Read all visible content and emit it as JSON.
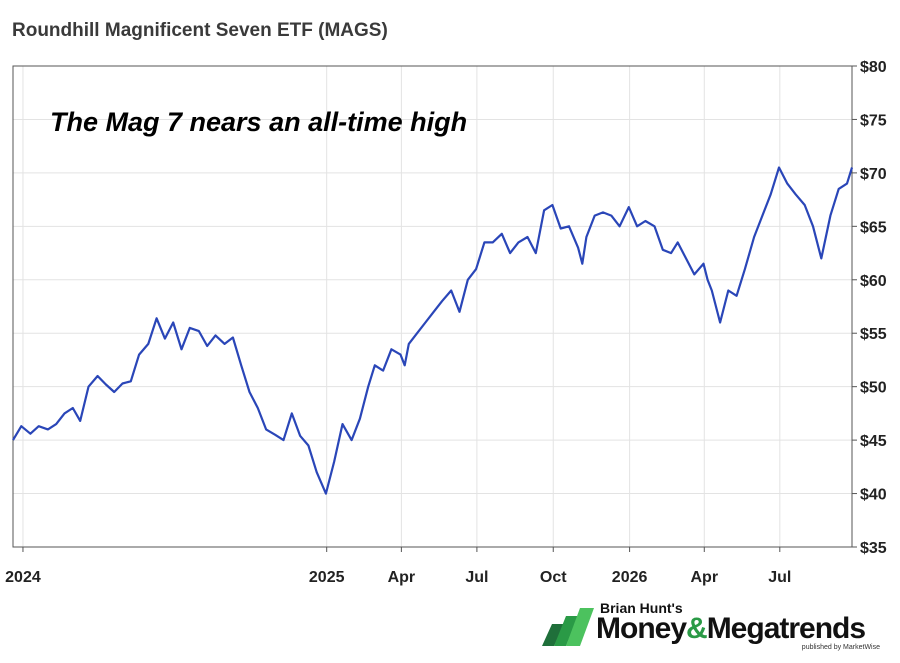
{
  "chart_title": "Roundhill Magnificent Seven ETF (MAGS)",
  "annotation": "The Mag 7 nears an all-time high",
  "logo": {
    "pre": "Brian Hunt's",
    "brand_a": "Money",
    "amp": "&",
    "brand_b": "Megatrends",
    "published": "published by MarketWise"
  },
  "colors": {
    "line": "#2a46b8",
    "grid": "#e3e3e3",
    "logo_green": "#2a9a46"
  },
  "chart_data": {
    "type": "line",
    "title": "Roundhill Magnificent Seven ETF (MAGS)",
    "annotations": [
      "The Mag 7 nears an all-time high"
    ],
    "xlabel": "",
    "ylabel": "",
    "y_axis_side": "right",
    "grid": true,
    "ylim": [
      35,
      80
    ],
    "yticks": [
      35,
      40,
      45,
      50,
      55,
      60,
      65,
      70,
      75,
      80
    ],
    "ytick_labels": [
      "$35",
      "$40",
      "$45",
      "$50",
      "$55",
      "$60",
      "$65",
      "$70",
      "$75",
      "$80"
    ],
    "xlim": [
      "2023-12-20",
      "2026-09-26"
    ],
    "xticks": [
      "2024-01-01",
      "2025-01-01",
      "2025-04-01",
      "2025-07-01",
      "2025-10-01",
      "2026-01-01",
      "2026-04-01",
      "2026-07-01"
    ],
    "xtick_labels": [
      "2024",
      "2025",
      "Apr",
      "Jul",
      "Oct",
      "2026",
      "Apr",
      "Jul"
    ],
    "series": [
      {
        "x": [
          "2023-12-20",
          "2023-12-30",
          "2024-01-10",
          "2024-01-20",
          "2024-01-31",
          "2024-02-10",
          "2024-02-20",
          "2024-03-01",
          "2024-03-10",
          "2024-03-20",
          "2024-03-31",
          "2024-04-10",
          "2024-04-20",
          "2024-04-30",
          "2024-05-10",
          "2024-05-20",
          "2024-05-31",
          "2024-06-10",
          "2024-06-20",
          "2024-06-30",
          "2024-07-10",
          "2024-07-20",
          "2024-07-31",
          "2024-08-10",
          "2024-08-20",
          "2024-08-31",
          "2024-09-10",
          "2024-09-20",
          "2024-09-30",
          "2024-10-10",
          "2024-10-20",
          "2024-10-31",
          "2024-11-10",
          "2024-11-20",
          "2024-11-30",
          "2024-12-10",
          "2024-12-20",
          "2024-12-31",
          "2025-01-10",
          "2025-01-20",
          "2025-01-31",
          "2025-02-10",
          "2025-02-20",
          "2025-02-28",
          "2025-03-10",
          "2025-03-20",
          "2025-03-31",
          "2025-04-05",
          "2025-04-10",
          "2025-04-20",
          "2025-04-30",
          "2025-05-10",
          "2025-05-20",
          "2025-05-31",
          "2025-06-10",
          "2025-06-20",
          "2025-06-30",
          "2025-07-10",
          "2025-07-20",
          "2025-07-31",
          "2025-08-10",
          "2025-08-20",
          "2025-08-31",
          "2025-09-10",
          "2025-09-20",
          "2025-09-30",
          "2025-10-10",
          "2025-10-20",
          "2025-10-31",
          "2025-11-05",
          "2025-11-10",
          "2025-11-20",
          "2025-11-30",
          "2025-12-10",
          "2025-12-20",
          "2025-12-31",
          "2026-01-10",
          "2026-01-20",
          "2026-01-31",
          "2026-02-10",
          "2026-02-20",
          "2026-02-28",
          "2026-03-10",
          "2026-03-20",
          "2026-03-31",
          "2026-04-05",
          "2026-04-10",
          "2026-04-20",
          "2026-04-30",
          "2026-05-10",
          "2026-05-20",
          "2026-05-31",
          "2026-06-10",
          "2026-06-20",
          "2026-06-30",
          "2026-07-10",
          "2026-07-20",
          "2026-07-31",
          "2026-08-10",
          "2026-08-20",
          "2026-08-31",
          "2026-09-10",
          "2026-09-20",
          "2026-09-26"
        ],
        "y": [
          45.0,
          46.3,
          45.6,
          46.3,
          46.0,
          46.5,
          47.5,
          48.0,
          46.8,
          50.0,
          51.0,
          50.2,
          49.5,
          50.3,
          50.5,
          53.0,
          54.0,
          56.4,
          54.5,
          56.0,
          53.5,
          55.5,
          55.2,
          53.8,
          54.8,
          54.0,
          54.6,
          52.0,
          49.5,
          48.0,
          46.0,
          45.5,
          45.0,
          47.5,
          45.4,
          44.5,
          42.0,
          40.0,
          43.0,
          46.5,
          45.0,
          47.0,
          50.0,
          52.0,
          51.5,
          53.5,
          53.0,
          52.0,
          54.0,
          55.0,
          56.0,
          57.0,
          58.0,
          59.0,
          57.0,
          60.0,
          61.0,
          63.5,
          63.5,
          64.3,
          62.5,
          63.5,
          64.0,
          62.5,
          66.5,
          67.0,
          64.8,
          65.0,
          63.0,
          61.5,
          64.0,
          66.0,
          66.3,
          66.0,
          65.0,
          66.8,
          65.0,
          65.5,
          65.0,
          62.8,
          62.5,
          63.5,
          62.0,
          60.5,
          61.5,
          60.0,
          59.0,
          56.0,
          59.0,
          58.5,
          61.0,
          64.0,
          66.0,
          68.0,
          70.5,
          69.0,
          68.0,
          67.0,
          65.0,
          62.0,
          66.0,
          68.5,
          69.0,
          70.5
        ]
      }
    ]
  }
}
